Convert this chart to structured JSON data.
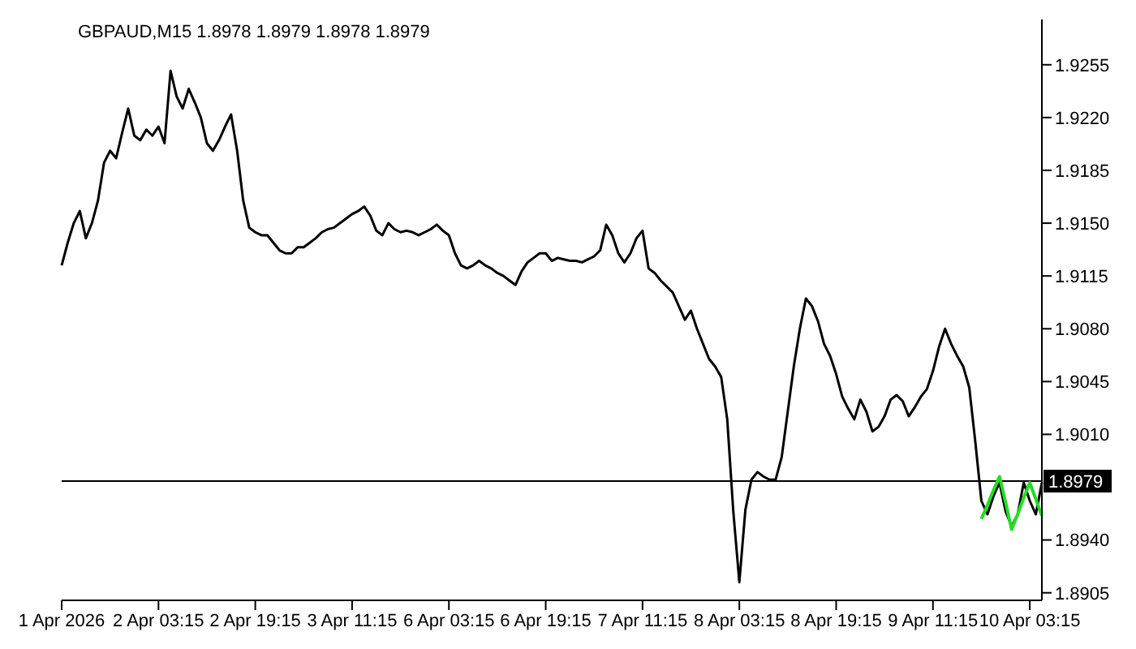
{
  "chart_data": {
    "type": "line",
    "title": "GBPAUD,M15  1.8978 1.8979 1.8978 1.8979",
    "categories": [
      "1 Apr 2026",
      null,
      null,
      null,
      null,
      null,
      null,
      null,
      null,
      null,
      null,
      null,
      null,
      null,
      null,
      null,
      "2 Apr 03:15",
      null,
      null,
      null,
      null,
      null,
      null,
      null,
      null,
      null,
      null,
      null,
      null,
      null,
      null,
      null,
      "2 Apr 19:15",
      null,
      null,
      null,
      null,
      null,
      null,
      null,
      null,
      null,
      null,
      null,
      null,
      null,
      null,
      null,
      "3 Apr 11:15",
      null,
      null,
      null,
      null,
      null,
      null,
      null,
      null,
      null,
      null,
      null,
      null,
      null,
      null,
      null,
      "6 Apr 03:15",
      null,
      null,
      null,
      null,
      null,
      null,
      null,
      null,
      null,
      null,
      null,
      null,
      null,
      null,
      null,
      "6 Apr 19:15",
      null,
      null,
      null,
      null,
      null,
      null,
      null,
      null,
      null,
      null,
      null,
      null,
      null,
      null,
      null,
      "7 Apr 11:15",
      null,
      null,
      null,
      null,
      null,
      null,
      null,
      null,
      null,
      null,
      null,
      null,
      null,
      null,
      null,
      "8 Apr 03:15",
      null,
      null,
      null,
      null,
      null,
      null,
      null,
      null,
      null,
      null,
      null,
      null,
      null,
      null,
      null,
      "8 Apr 19:15",
      null,
      null,
      null,
      null,
      null,
      null,
      null,
      null,
      null,
      null,
      null,
      null,
      null,
      null,
      null,
      "9 Apr 11:15",
      null,
      null,
      null,
      null,
      null,
      null,
      null,
      null,
      null,
      null,
      null,
      null,
      null,
      null,
      null,
      "10 Apr 03:15",
      null,
      null
    ],
    "series": [
      {
        "color": "#000000",
        "values": [
          1.9122,
          1.9137,
          1.915,
          1.9158,
          1.914,
          1.915,
          1.9165,
          1.919,
          1.9198,
          1.9193,
          1.921,
          1.9226,
          1.9208,
          1.9205,
          1.9212,
          1.9208,
          1.9214,
          1.9203,
          1.9251,
          1.9234,
          1.9226,
          1.9239,
          1.923,
          1.922,
          1.9203,
          1.9198,
          1.9205,
          1.9214,
          1.9222,
          1.9198,
          1.9165,
          1.9147,
          1.9144,
          1.9142,
          1.9142,
          1.9137,
          1.9132,
          1.913,
          1.913,
          1.9134,
          1.9134,
          1.9137,
          1.914,
          1.9144,
          1.9146,
          1.9147,
          1.915,
          1.9153,
          1.9156,
          1.9158,
          1.9161,
          1.9155,
          1.9145,
          1.9142,
          1.915,
          1.9146,
          1.9144,
          1.9145,
          1.9144,
          1.9142,
          1.9144,
          1.9146,
          1.9149,
          1.9145,
          1.9142,
          1.913,
          1.9122,
          1.912,
          1.9122,
          1.9125,
          1.9122,
          1.912,
          1.9117,
          1.9115,
          1.9112,
          1.9109,
          1.9118,
          1.9124,
          1.9127,
          1.913,
          1.913,
          1.9125,
          1.9127,
          1.9126,
          1.9125,
          1.9125,
          1.9124,
          1.9126,
          1.9128,
          1.9132,
          1.9149,
          1.9142,
          1.913,
          1.9124,
          1.913,
          1.914,
          1.9145,
          1.912,
          1.9117,
          1.9112,
          1.9108,
          1.9104,
          1.9095,
          1.9086,
          1.9092,
          1.908,
          1.907,
          1.906,
          1.9055,
          1.9048,
          1.902,
          1.8959,
          1.8912,
          1.896,
          1.898,
          1.8985,
          1.8982,
          1.898,
          1.898,
          1.8995,
          1.9025,
          1.9055,
          1.908,
          1.91,
          1.9095,
          1.9085,
          1.907,
          1.9062,
          1.905,
          1.9035,
          1.9027,
          1.902,
          1.9033,
          1.9025,
          1.9012,
          1.9015,
          1.9022,
          1.9033,
          1.9036,
          1.9032,
          1.9022,
          1.9028,
          1.9035,
          1.904,
          1.9052,
          1.9068,
          1.908,
          1.907,
          1.9062,
          1.9055,
          1.9041,
          1.9005,
          1.8966,
          1.8957,
          1.8969,
          1.8978,
          1.8959,
          1.8949,
          1.8957,
          1.8978,
          1.8966,
          1.8957,
          1.8978
        ]
      },
      {
        "color": "#22dd22",
        "values": [
          null,
          null,
          null,
          null,
          null,
          null,
          null,
          null,
          null,
          null,
          null,
          null,
          null,
          null,
          null,
          null,
          null,
          null,
          null,
          null,
          null,
          null,
          null,
          null,
          null,
          null,
          null,
          null,
          null,
          null,
          null,
          null,
          null,
          null,
          null,
          null,
          null,
          null,
          null,
          null,
          null,
          null,
          null,
          null,
          null,
          null,
          null,
          null,
          null,
          null,
          null,
          null,
          null,
          null,
          null,
          null,
          null,
          null,
          null,
          null,
          null,
          null,
          null,
          null,
          null,
          null,
          null,
          null,
          null,
          null,
          null,
          null,
          null,
          null,
          null,
          null,
          null,
          null,
          null,
          null,
          null,
          null,
          null,
          null,
          null,
          null,
          null,
          null,
          null,
          null,
          null,
          null,
          null,
          null,
          null,
          null,
          null,
          null,
          null,
          null,
          null,
          null,
          null,
          null,
          null,
          null,
          null,
          null,
          null,
          null,
          null,
          null,
          null,
          null,
          null,
          null,
          null,
          null,
          null,
          null,
          null,
          null,
          null,
          null,
          null,
          null,
          null,
          null,
          null,
          null,
          null,
          null,
          null,
          null,
          null,
          null,
          null,
          null,
          null,
          null,
          null,
          null,
          null,
          null,
          null,
          null,
          null,
          null,
          null,
          null,
          null,
          null,
          1.8954,
          1.8963,
          1.8973,
          1.8982,
          1.8965,
          1.8947,
          1.8957,
          1.8968,
          1.8978,
          1.8967,
          1.8956
        ]
      }
    ],
    "ylim": [
      1.89,
      1.9285
    ],
    "yticks": [
      1.8905,
      {
        "value": 1.894,
        "label": "1.8940"
      },
      {
        "value": 1.901,
        "label": "1.9010"
      },
      1.9045,
      {
        "value": 1.908,
        "label": "1.9080"
      },
      1.9115,
      {
        "value": 1.915,
        "label": "1.9150"
      },
      1.9185,
      {
        "value": 1.922,
        "label": "1.9220"
      },
      1.9255
    ],
    "ref_lines": [
      {
        "axis": "y",
        "value": 1.8979,
        "label": "1.8979",
        "color": "#000000"
      }
    ],
    "grid": false,
    "marker": "none",
    "line_style": "solid"
  }
}
